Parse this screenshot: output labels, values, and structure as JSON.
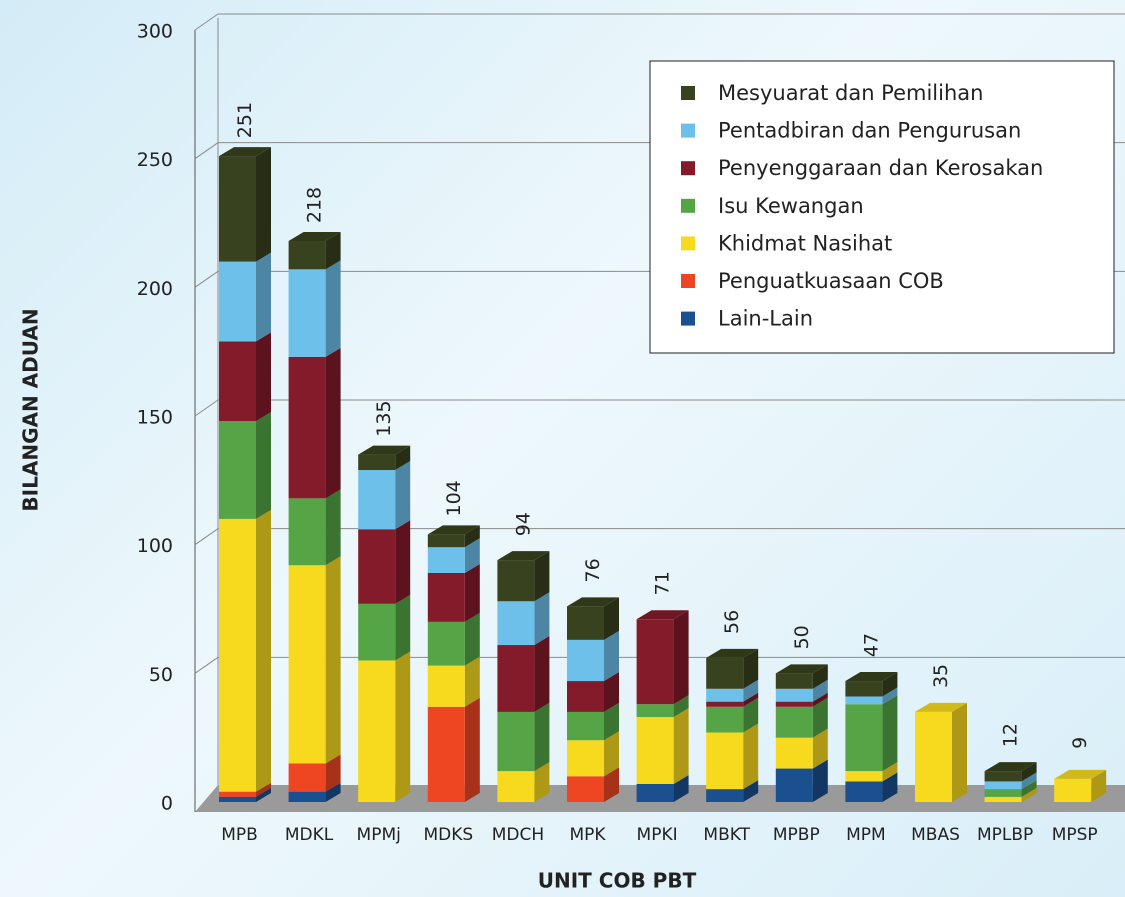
{
  "chart_data": {
    "type": "bar",
    "stacked": true,
    "ylabel": "BILANGAN ADUAN",
    "xlabel": "UNIT COB PBT",
    "categories": [
      "MPB",
      "MDKL",
      "MPMj",
      "MDKS",
      "MDCH",
      "MPK",
      "MPKI",
      "MBKT",
      "MPBP",
      "MPM",
      "MBAS",
      "MPLBP",
      "MPSP"
    ],
    "totals": [
      251,
      218,
      135,
      104,
      94,
      76,
      71,
      56,
      50,
      47,
      35,
      12,
      9
    ],
    "series": [
      {
        "name": "Mesyuarat dan Pemilihan",
        "color": "#38421e",
        "values": [
          41,
          11,
          6,
          5,
          16,
          13,
          0,
          12,
          6,
          6,
          0,
          4,
          0
        ]
      },
      {
        "name": "Pentadbiran dan Pengurusan",
        "color": "#6cc0ea",
        "values": [
          31,
          34,
          23,
          10,
          17,
          16,
          0,
          5,
          5,
          3,
          0,
          3,
          0
        ]
      },
      {
        "name": "Penyenggaraan dan Kerosakan",
        "color": "#841b2a",
        "values": [
          31,
          55,
          29,
          19,
          26,
          12,
          33,
          2,
          2,
          0,
          0,
          0,
          0
        ]
      },
      {
        "name": "Isu Kewangan",
        "color": "#55a546",
        "values": [
          38,
          26,
          22,
          17,
          23,
          11,
          5,
          10,
          12,
          26,
          0,
          3,
          0
        ]
      },
      {
        "name": "Khidmat Nasihat",
        "color": "#f7da1e",
        "values": [
          106,
          77,
          55,
          16,
          12,
          14,
          26,
          22,
          12,
          4,
          35,
          2,
          9
        ]
      },
      {
        "name": "Penguatkuasaan COB",
        "color": "#ee4623",
        "values": [
          2,
          11,
          0,
          37,
          0,
          10,
          0,
          0,
          0,
          0,
          0,
          0,
          0
        ]
      },
      {
        "name": "Lain-Lain",
        "color": "#1a4f90",
        "values": [
          2,
          4,
          0,
          0,
          0,
          0,
          7,
          5,
          13,
          8,
          0,
          0,
          0
        ]
      }
    ],
    "ylim": [
      0,
      300
    ],
    "yticks": [
      0,
      50,
      100,
      150,
      200,
      250,
      300
    ],
    "grid": true,
    "legend": "upper right"
  }
}
